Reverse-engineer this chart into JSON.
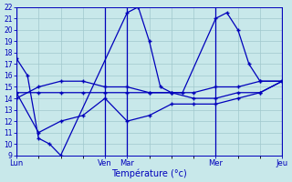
{
  "xlabel": "Température (°c)",
  "background_color": "#c8e8ea",
  "grid_color": "#a0c8cc",
  "line_color": "#0000bb",
  "ylim": [
    9,
    22
  ],
  "xlim": [
    0,
    24
  ],
  "xtick_major_positions": [
    0,
    8,
    10,
    18,
    24
  ],
  "xtick_major_labels": [
    "Lun",
    "Ven",
    "Mar",
    "Mer",
    "Jeu"
  ],
  "line1_x": [
    0,
    1,
    2,
    3,
    4,
    10,
    11,
    12,
    13,
    14,
    15,
    18,
    19,
    20,
    21,
    22,
    24
  ],
  "line1_y": [
    17.5,
    16.0,
    10.5,
    10.0,
    9.0,
    21.5,
    22.0,
    19.0,
    15.0,
    14.5,
    14.5,
    21.0,
    21.5,
    20.0,
    17.0,
    15.5,
    15.5
  ],
  "line2_x": [
    0,
    2,
    4,
    6,
    8,
    10,
    12,
    14,
    16,
    18,
    20,
    22,
    24
  ],
  "line2_y": [
    14.5,
    14.5,
    14.5,
    14.5,
    14.5,
    14.5,
    14.5,
    14.5,
    14.5,
    15.0,
    15.0,
    15.5,
    15.5
  ],
  "line3_x": [
    0,
    2,
    4,
    6,
    8,
    10,
    12,
    14,
    16,
    18,
    20,
    22,
    24
  ],
  "line3_y": [
    14.5,
    11.0,
    12.0,
    12.5,
    14.0,
    12.0,
    12.5,
    13.5,
    13.5,
    13.5,
    14.0,
    14.5,
    15.5
  ],
  "line4_x": [
    0,
    2,
    4,
    6,
    8,
    10,
    12,
    14,
    16,
    18,
    20,
    22,
    24
  ],
  "line4_y": [
    14.0,
    15.0,
    15.5,
    15.5,
    15.0,
    15.0,
    14.5,
    14.5,
    14.0,
    14.0,
    14.5,
    14.5,
    15.5
  ]
}
